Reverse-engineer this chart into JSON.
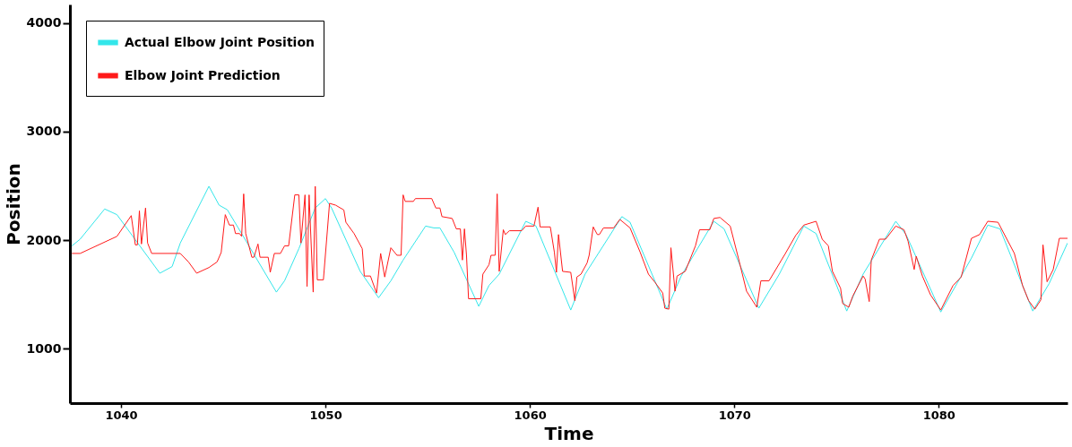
{
  "chart_data": {
    "type": "line",
    "xlabel": "Time",
    "ylabel": "Position",
    "xlim": [
      1037.5,
      1086.3
    ],
    "ylim": [
      500,
      4170
    ],
    "xticks": [
      1040,
      1050,
      1060,
      1070,
      1080
    ],
    "yticks": [
      1000,
      2000,
      3000,
      4000
    ],
    "grid": false,
    "legend": "top left",
    "line_style": "solid",
    "marker": "none",
    "series": [
      {
        "name": "Actual Elbow Joint Position",
        "color": "#33e6ea",
        "x": [
          1037.6,
          1038.0,
          1039.2,
          1039.8,
          1041.9,
          1042.5,
          1042.9,
          1044.3,
          1044.8,
          1045.2,
          1045.9,
          1047.6,
          1048.0,
          1048.7,
          1049.5,
          1050.0,
          1050.3,
          1051.7,
          1052.6,
          1053.2,
          1053.8,
          1054.9,
          1055.3,
          1055.6,
          1056.3,
          1057.5,
          1058.0,
          1058.5,
          1059.8,
          1060.3,
          1062.0,
          1062.7,
          1064.5,
          1064.9,
          1066.7,
          1067.4,
          1069.0,
          1069.5,
          1071.2,
          1072.2,
          1073.4,
          1074.0,
          1075.5,
          1076.3,
          1077.9,
          1078.4,
          1080.1,
          1081.6,
          1082.4,
          1083.0,
          1084.6,
          1085.4,
          1086.3
        ],
        "values": [
          1948,
          2009,
          2287,
          2235,
          1696,
          1757,
          1974,
          2496,
          2322,
          2280,
          2061,
          1522,
          1626,
          1922,
          2296,
          2383,
          2296,
          1713,
          1470,
          1626,
          1817,
          2130,
          2113,
          2113,
          1887,
          1391,
          1583,
          1687,
          2174,
          2130,
          1357,
          1687,
          2217,
          2165,
          1365,
          1670,
          2174,
          2104,
          1374,
          1687,
          2130,
          2061,
          1348,
          1687,
          2174,
          2052,
          1339,
          1835,
          2139,
          2104,
          1348,
          1600,
          1974
        ]
      },
      {
        "name": "Elbow Joint Prediction",
        "color": "#ff1a1a",
        "x": [
          1037.6,
          1038.0,
          1039.8,
          1040.5,
          1040.7,
          1040.8,
          1040.9,
          1041.0,
          1041.2,
          1041.3,
          1041.5,
          1042.9,
          1043.3,
          1043.7,
          1044.3,
          1044.7,
          1044.9,
          1045.1,
          1045.3,
          1045.5,
          1045.6,
          1045.8,
          1045.9,
          1046.0,
          1046.1,
          1046.4,
          1046.5,
          1046.7,
          1046.8,
          1047.2,
          1047.3,
          1047.5,
          1047.8,
          1048.0,
          1048.2,
          1048.5,
          1048.7,
          1048.8,
          1049.0,
          1049.1,
          1049.2,
          1049.4,
          1049.5,
          1049.6,
          1049.9,
          1050.2,
          1050.5,
          1050.9,
          1051.0,
          1051.4,
          1051.8,
          1051.9,
          1052.2,
          1052.5,
          1052.7,
          1052.9,
          1053.2,
          1053.5,
          1053.7,
          1053.8,
          1053.9,
          1054.3,
          1054.4,
          1055.2,
          1055.4,
          1055.6,
          1055.7,
          1056.2,
          1056.4,
          1056.6,
          1056.7,
          1056.8,
          1056.9,
          1057.0,
          1057.6,
          1057.7,
          1058.0,
          1058.1,
          1058.3,
          1058.4,
          1058.5,
          1058.7,
          1058.8,
          1059.0,
          1059.6,
          1059.8,
          1060.2,
          1060.4,
          1060.5,
          1061.0,
          1061.2,
          1061.3,
          1061.4,
          1061.6,
          1062.0,
          1062.2,
          1062.3,
          1062.5,
          1062.8,
          1062.9,
          1063.1,
          1063.3,
          1063.4,
          1063.6,
          1064.1,
          1064.4,
          1064.9,
          1065.4,
          1065.8,
          1066.1,
          1066.5,
          1066.6,
          1066.8,
          1066.9,
          1067.1,
          1067.2,
          1067.6,
          1068.1,
          1068.3,
          1068.8,
          1069.0,
          1069.3,
          1069.8,
          1070.2,
          1070.6,
          1071.1,
          1071.3,
          1071.7,
          1072.5,
          1073.0,
          1073.4,
          1074.0,
          1074.3,
          1074.6,
          1074.8,
          1075.2,
          1075.3,
          1075.6,
          1075.8,
          1076.3,
          1076.4,
          1076.6,
          1076.7,
          1077.1,
          1077.4,
          1077.9,
          1078.3,
          1078.5,
          1078.8,
          1078.9,
          1079.2,
          1079.6,
          1080.1,
          1080.7,
          1081.1,
          1081.6,
          1082.0,
          1082.4,
          1082.9,
          1083.7,
          1084.1,
          1084.4,
          1084.7,
          1085.0,
          1085.1,
          1085.3,
          1085.6,
          1085.9,
          1086.3
        ],
        "values": [
          1878,
          1878,
          2035,
          2226,
          1957,
          1957,
          2270,
          1965,
          2296,
          1974,
          1878,
          1878,
          1800,
          1696,
          1748,
          1800,
          1887,
          2235,
          2139,
          2139,
          2061,
          2061,
          2035,
          2426,
          2061,
          1843,
          1843,
          1965,
          1843,
          1843,
          1704,
          1878,
          1878,
          1948,
          1948,
          2417,
          2417,
          1974,
          2417,
          1574,
          2417,
          1522,
          2496,
          1635,
          1635,
          2339,
          2322,
          2278,
          2165,
          2061,
          1922,
          1670,
          1670,
          1513,
          1878,
          1661,
          1930,
          1861,
          1861,
          2417,
          2357,
          2357,
          2383,
          2383,
          2296,
          2296,
          2217,
          2200,
          2104,
          2104,
          1817,
          2104,
          1861,
          1461,
          1461,
          1687,
          1774,
          1861,
          1861,
          2426,
          1713,
          2096,
          2052,
          2087,
          2087,
          2130,
          2130,
          2304,
          2122,
          2122,
          1887,
          1704,
          2052,
          1713,
          1704,
          1443,
          1661,
          1687,
          1791,
          1861,
          2122,
          2052,
          2052,
          2113,
          2113,
          2191,
          2113,
          1887,
          1687,
          1617,
          1513,
          1374,
          1365,
          1930,
          1530,
          1670,
          1713,
          1948,
          2096,
          2096,
          2200,
          2209,
          2130,
          1835,
          1530,
          1383,
          1626,
          1626,
          1878,
          2043,
          2139,
          2174,
          2009,
          1948,
          1713,
          1557,
          1417,
          1383,
          1487,
          1670,
          1643,
          1435,
          1817,
          2009,
          2009,
          2130,
          2096,
          1991,
          1730,
          1852,
          1670,
          1496,
          1357,
          1583,
          1661,
          2017,
          2052,
          2174,
          2165,
          1878,
          1583,
          1443,
          1365,
          1452,
          1957,
          1617,
          1730,
          2017,
          2017
        ]
      }
    ]
  }
}
